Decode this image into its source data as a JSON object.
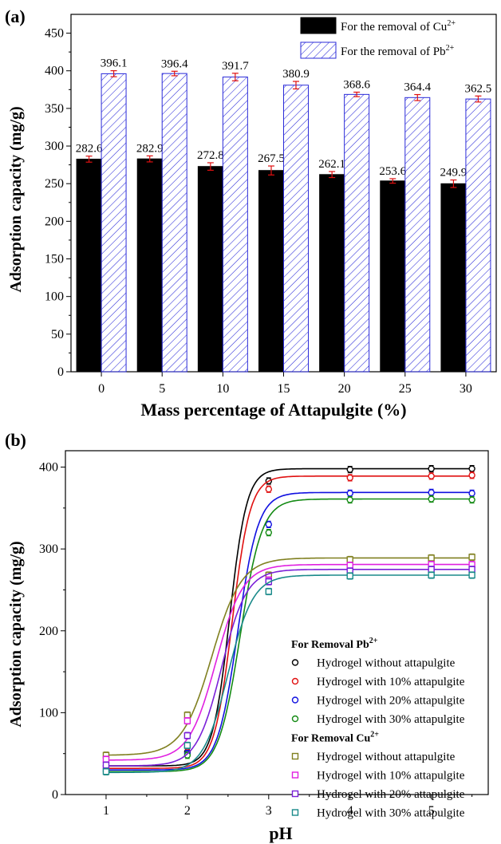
{
  "chart_data": [
    {
      "panel_label": "(a)",
      "type": "bar",
      "xlabel": "Mass percentage of Attapulgite (%)",
      "ylabel": "Adsorption capacity (mg/g)",
      "ylim": [
        0,
        475
      ],
      "yticks": [
        0,
        50,
        100,
        150,
        200,
        250,
        300,
        350,
        400,
        450
      ],
      "categories": [
        "0",
        "5",
        "10",
        "15",
        "20",
        "25",
        "30"
      ],
      "legend_position": "top-right",
      "series": [
        {
          "name": "For the removal of Cu",
          "name_sup": "2+",
          "values": [
            282.6,
            282.9,
            272.8,
            267.5,
            262.1,
            253.6,
            249.9
          ],
          "labels": [
            "282.6",
            "282.9",
            "272.8",
            "267.5",
            "262.1",
            "253.6",
            "249.9"
          ],
          "errors": [
            4,
            4,
            5,
            6,
            4,
            3,
            5
          ],
          "fill": "#000000",
          "style": "solid"
        },
        {
          "name": "For the removal of Pb",
          "name_sup": "2+",
          "values": [
            396.1,
            396.4,
            391.7,
            380.9,
            368.6,
            364.4,
            362.5
          ],
          "labels": [
            "396.1",
            "396.4",
            "391.7",
            "380.9",
            "368.6",
            "364.4",
            "362.5"
          ],
          "errors": [
            4,
            3,
            5,
            5,
            3,
            4,
            4
          ],
          "fill": "#2b2bd9",
          "style": "hatched"
        }
      ],
      "error_bar_color": "#e01010"
    },
    {
      "panel_label": "(b)",
      "type": "line",
      "xlabel": "pH",
      "ylabel": "Adsorption capacity (mg/g)",
      "xlim": [
        0.5,
        5.7
      ],
      "ylim": [
        0,
        420
      ],
      "xticks": [
        1,
        2,
        3,
        4,
        5
      ],
      "yticks": [
        0,
        100,
        200,
        300,
        400
      ],
      "x": [
        1,
        2,
        3,
        4,
        5,
        5.5
      ],
      "legend_groups": [
        {
          "title": "For Removal Pb",
          "title_sup": "2+"
        },
        {
          "title": "For Removal Cu",
          "title_sup": "2+"
        }
      ],
      "series": [
        {
          "group": 0,
          "name": "Hydrogel without attapulgite",
          "color": "#000000",
          "values": [
            35,
            52,
            383,
            397,
            398,
            398
          ],
          "fit": {
            "low": 35,
            "high": 398,
            "center": 2.52,
            "k": 9.5
          }
        },
        {
          "group": 0,
          "name": "Hydrogel with 10% attapulgite",
          "color": "#e01010",
          "values": [
            32,
            58,
            373,
            387,
            389,
            390
          ],
          "fit": {
            "low": 32,
            "high": 389,
            "center": 2.55,
            "k": 9
          }
        },
        {
          "group": 0,
          "name": "Hydrogel with 20% attapulgite",
          "color": "#1010e0",
          "values": [
            30,
            50,
            330,
            368,
            369,
            368
          ],
          "fit": {
            "low": 30,
            "high": 369,
            "center": 2.62,
            "k": 8
          }
        },
        {
          "group": 0,
          "name": "Hydrogel with 30% attapulgite",
          "color": "#138a13",
          "values": [
            28,
            48,
            320,
            360,
            361,
            360
          ],
          "fit": {
            "low": 28,
            "high": 361,
            "center": 2.65,
            "k": 7.5
          }
        },
        {
          "group": 1,
          "name": "Hydrogel without attapulgite",
          "color": "#808020",
          "values": [
            48,
            97,
            268,
            287,
            289,
            290
          ],
          "fit": {
            "low": 48,
            "high": 289,
            "center": 2.3,
            "k": 5.5
          }
        },
        {
          "group": 1,
          "name": "Hydrogel with 10% attapulgite",
          "color": "#e020e0",
          "values": [
            43,
            90,
            262,
            280,
            281,
            281
          ],
          "fit": {
            "low": 42,
            "high": 281,
            "center": 2.35,
            "k": 6
          }
        },
        {
          "group": 1,
          "name": "Hydrogel with 20% attapulgite",
          "color": "#7a20d8",
          "values": [
            36,
            72,
            260,
            273,
            275,
            275
          ],
          "fit": {
            "low": 35,
            "high": 275,
            "center": 2.42,
            "k": 6.5
          }
        },
        {
          "group": 1,
          "name": "Hydrogel with 30% attapulgite",
          "color": "#1a8a8a",
          "values": [
            28,
            60,
            248,
            267,
            268,
            268
          ],
          "fit": {
            "low": 27,
            "high": 268,
            "center": 2.5,
            "k": 6.5
          }
        }
      ]
    }
  ]
}
